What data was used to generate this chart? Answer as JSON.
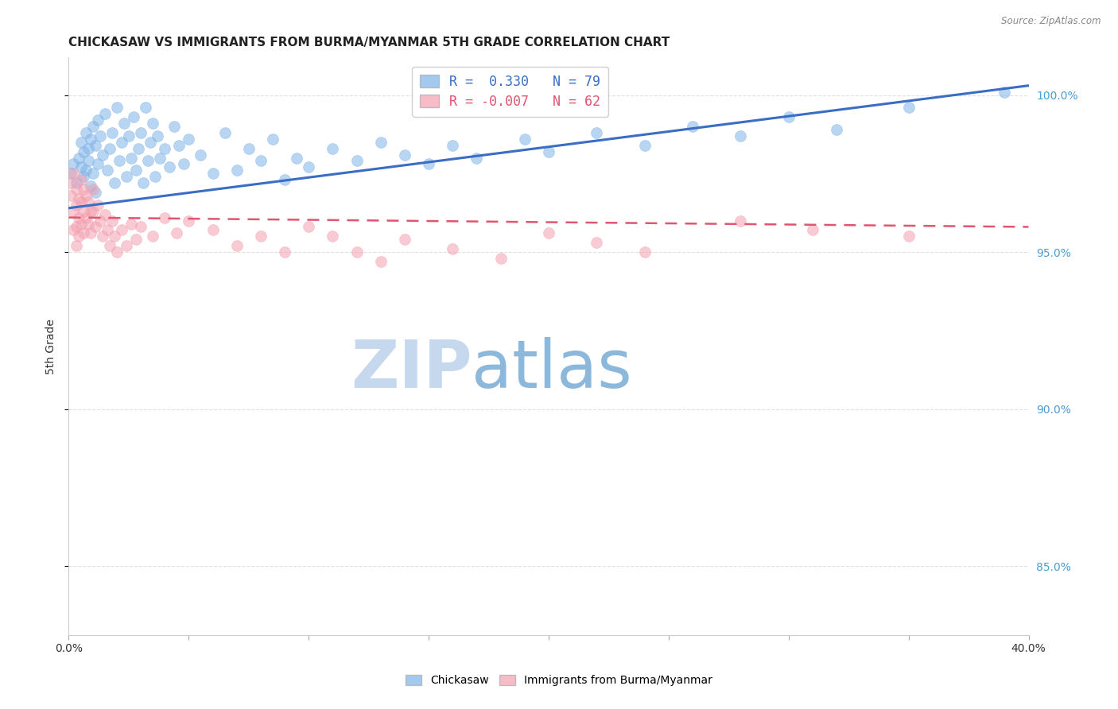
{
  "title": "CHICKASAW VS IMMIGRANTS FROM BURMA/MYANMAR 5TH GRADE CORRELATION CHART",
  "source": "Source: ZipAtlas.com",
  "ylabel": "5th Grade",
  "x_min": 0.0,
  "x_max": 0.4,
  "y_min": 0.828,
  "y_max": 1.012,
  "ytick_values": [
    0.85,
    0.9,
    0.95,
    1.0
  ],
  "ytick_labels": [
    "85.0%",
    "90.0%",
    "95.0%",
    "100.0%"
  ],
  "blue_color": "#7EB3E8",
  "pink_color": "#F4A0B0",
  "trendline_blue_color": "#3A6DC4",
  "trendline_pink_color": "#E05570",
  "background_color": "#FFFFFF",
  "watermark_zip": "ZIP",
  "watermark_atlas": "atlas",
  "watermark_color_zip": "#C5D8EE",
  "watermark_color_atlas": "#8CB8DC",
  "grid_color": "#E0E0E0",
  "blue_scatter_x": [
    0.001,
    0.002,
    0.003,
    0.004,
    0.005,
    0.005,
    0.006,
    0.006,
    0.007,
    0.007,
    0.008,
    0.008,
    0.009,
    0.009,
    0.01,
    0.01,
    0.011,
    0.011,
    0.012,
    0.012,
    0.013,
    0.014,
    0.015,
    0.016,
    0.017,
    0.018,
    0.019,
    0.02,
    0.021,
    0.022,
    0.023,
    0.024,
    0.025,
    0.026,
    0.027,
    0.028,
    0.029,
    0.03,
    0.031,
    0.032,
    0.033,
    0.034,
    0.035,
    0.036,
    0.037,
    0.038,
    0.04,
    0.042,
    0.044,
    0.046,
    0.048,
    0.05,
    0.055,
    0.06,
    0.065,
    0.07,
    0.075,
    0.08,
    0.085,
    0.09,
    0.095,
    0.1,
    0.11,
    0.12,
    0.13,
    0.14,
    0.15,
    0.16,
    0.17,
    0.19,
    0.2,
    0.22,
    0.24,
    0.26,
    0.28,
    0.3,
    0.32,
    0.35,
    0.39
  ],
  "blue_scatter_y": [
    0.975,
    0.978,
    0.972,
    0.98,
    0.985,
    0.977,
    0.982,
    0.974,
    0.988,
    0.976,
    0.983,
    0.979,
    0.986,
    0.971,
    0.99,
    0.975,
    0.984,
    0.969,
    0.992,
    0.978,
    0.987,
    0.981,
    0.994,
    0.976,
    0.983,
    0.988,
    0.972,
    0.996,
    0.979,
    0.985,
    0.991,
    0.974,
    0.987,
    0.98,
    0.993,
    0.976,
    0.983,
    0.988,
    0.972,
    0.996,
    0.979,
    0.985,
    0.991,
    0.974,
    0.987,
    0.98,
    0.983,
    0.977,
    0.99,
    0.984,
    0.978,
    0.986,
    0.981,
    0.975,
    0.988,
    0.976,
    0.983,
    0.979,
    0.986,
    0.973,
    0.98,
    0.977,
    0.983,
    0.979,
    0.985,
    0.981,
    0.978,
    0.984,
    0.98,
    0.986,
    0.982,
    0.988,
    0.984,
    0.99,
    0.987,
    0.993,
    0.989,
    0.996,
    1.001
  ],
  "pink_scatter_x": [
    0.001,
    0.001,
    0.002,
    0.002,
    0.002,
    0.003,
    0.003,
    0.003,
    0.003,
    0.004,
    0.004,
    0.004,
    0.005,
    0.005,
    0.005,
    0.006,
    0.006,
    0.006,
    0.007,
    0.007,
    0.008,
    0.008,
    0.009,
    0.009,
    0.01,
    0.01,
    0.011,
    0.012,
    0.013,
    0.014,
    0.015,
    0.016,
    0.017,
    0.018,
    0.019,
    0.02,
    0.022,
    0.024,
    0.026,
    0.028,
    0.03,
    0.035,
    0.04,
    0.045,
    0.05,
    0.06,
    0.07,
    0.08,
    0.09,
    0.1,
    0.11,
    0.12,
    0.13,
    0.14,
    0.16,
    0.18,
    0.2,
    0.22,
    0.24,
    0.28,
    0.31,
    0.35
  ],
  "pink_scatter_y": [
    0.972,
    0.968,
    0.975,
    0.963,
    0.957,
    0.97,
    0.965,
    0.958,
    0.952,
    0.967,
    0.961,
    0.955,
    0.973,
    0.966,
    0.959,
    0.97,
    0.963,
    0.956,
    0.968,
    0.961,
    0.966,
    0.959,
    0.963,
    0.956,
    0.97,
    0.963,
    0.958,
    0.965,
    0.96,
    0.955,
    0.962,
    0.957,
    0.952,
    0.96,
    0.955,
    0.95,
    0.957,
    0.952,
    0.959,
    0.954,
    0.958,
    0.955,
    0.961,
    0.956,
    0.96,
    0.957,
    0.952,
    0.955,
    0.95,
    0.958,
    0.955,
    0.95,
    0.947,
    0.954,
    0.951,
    0.948,
    0.956,
    0.953,
    0.95,
    0.96,
    0.957,
    0.955
  ],
  "blue_trend_x": [
    0.0,
    0.4
  ],
  "blue_trend_y": [
    0.964,
    1.003
  ],
  "pink_trend_x": [
    0.0,
    0.4
  ],
  "pink_trend_y": [
    0.961,
    0.958
  ],
  "legend_items": [
    {
      "label": "R =  0.330   N = 79",
      "color": "#7EB3E8"
    },
    {
      "label": "R = -0.007   N = 62",
      "color": "#F4A0B0"
    }
  ],
  "legend_text_colors": [
    "#3A6DC4",
    "#E05570"
  ],
  "bottom_legend": [
    "Chickasaw",
    "Immigrants from Burma/Myanmar"
  ]
}
